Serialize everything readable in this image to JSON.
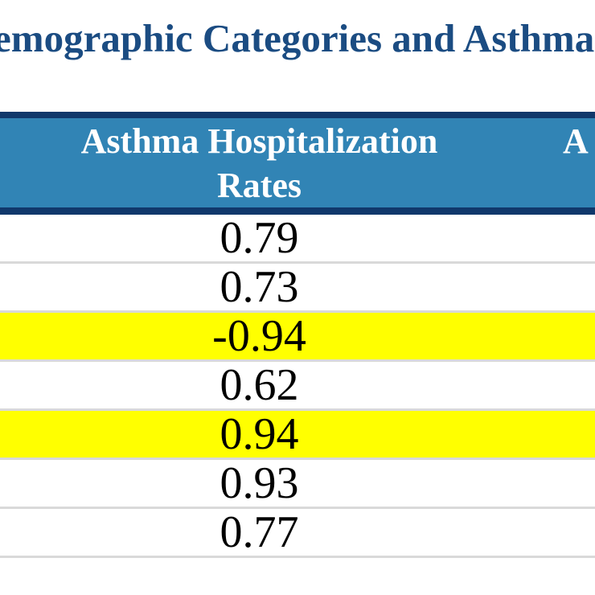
{
  "title": {
    "visible_text": "emographic Categories and Asthma"
  },
  "table": {
    "columns": [
      {
        "name": "asthma-hospitalization-rates",
        "header_lines": [
          "Asthma Hospitalization",
          "Rates"
        ]
      },
      {
        "name": "next-column-cropped",
        "header_visible_text": "A"
      }
    ],
    "rows": [
      {
        "value": "0.79",
        "highlighted": false
      },
      {
        "value": "0.73",
        "highlighted": false
      },
      {
        "value": "-0.94",
        "highlighted": true
      },
      {
        "value": "0.62",
        "highlighted": false
      },
      {
        "value": "0.94",
        "highlighted": true
      },
      {
        "value": "0.93",
        "highlighted": false
      },
      {
        "value": "0.77",
        "highlighted": false
      }
    ]
  },
  "colors": {
    "title_text": "#1B4C82",
    "header_background": "#3184B5",
    "header_text": "#FFFFFF",
    "header_border": "#10386B",
    "row_separator": "#D9D9D9",
    "highlight": "#FFFF00",
    "value_text": "#000000"
  }
}
